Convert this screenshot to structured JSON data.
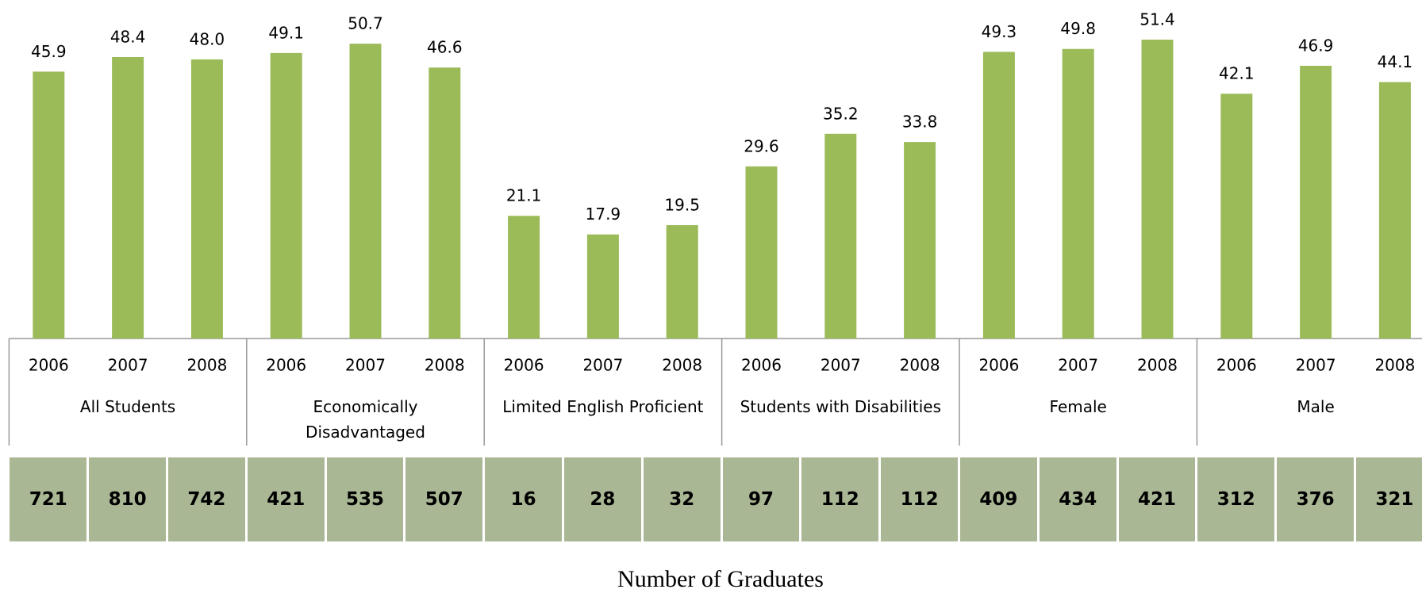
{
  "chart_data": {
    "type": "bar",
    "categories": [
      "2006",
      "2007",
      "2008",
      "2006",
      "2007",
      "2008",
      "2006",
      "2007",
      "2008",
      "2006",
      "2007",
      "2008",
      "2006",
      "2007",
      "2008",
      "2006",
      "2007",
      "2008"
    ],
    "groups": [
      "All Students",
      "Economically Disadvantaged",
      "Limited English Proficient",
      "Students with Disabilities",
      "Female",
      "Male"
    ],
    "values": [
      45.9,
      48.4,
      48.0,
      49.1,
      50.7,
      46.6,
      21.1,
      17.9,
      19.5,
      29.6,
      35.2,
      33.8,
      49.3,
      49.8,
      51.4,
      42.1,
      46.9,
      44.1
    ],
    "value_labels": [
      "45.9",
      "48.4",
      "48.0",
      "49.1",
      "50.7",
      "46.6",
      "21.1",
      "17.9",
      "19.5",
      "29.6",
      "35.2",
      "33.8",
      "49.3",
      "49.8",
      "51.4",
      "42.1",
      "46.9",
      "44.1"
    ],
    "color": "#9bbb59"
  },
  "table": {
    "title": "Number of Graduates",
    "values": [
      721,
      810,
      742,
      421,
      535,
      507,
      16,
      28,
      32,
      97,
      112,
      112,
      409,
      434,
      421,
      312,
      376,
      321
    ],
    "color": "#aab795"
  }
}
